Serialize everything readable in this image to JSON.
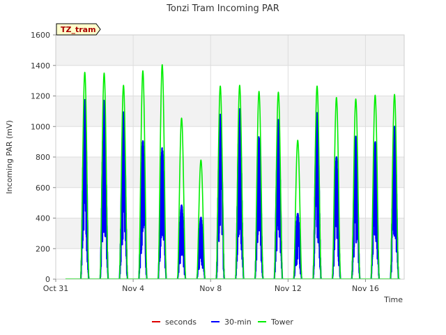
{
  "chart_data": {
    "type": "line",
    "title": "Tonzi Tram Incoming PAR",
    "xlabel": "Time",
    "ylabel": "Incoming PAR (mV)",
    "ylim": [
      0,
      1600
    ],
    "xlim": [
      "2023-10-31",
      "2023-11-18"
    ],
    "x_ticks": [
      {
        "label": "Oct 31",
        "day": 0
      },
      {
        "label": "Nov 4",
        "day": 4
      },
      {
        "label": "Nov 8",
        "day": 8
      },
      {
        "label": "Nov 12",
        "day": 12
      },
      {
        "label": "Nov 16",
        "day": 16
      }
    ],
    "y_ticks": [
      0,
      200,
      400,
      600,
      800,
      1000,
      1200,
      1400,
      1600
    ],
    "grid": true,
    "banded_background": true,
    "site_label": "TZ_tram",
    "legend_position": "bottom-center",
    "series": [
      {
        "name": "seconds",
        "color": "#dd0000",
        "daily_peaks": []
      },
      {
        "name": "30-min",
        "color": "#0000ff",
        "daily_peaks": [
          {
            "date": "Nov 1",
            "peak": 1175
          },
          {
            "date": "Nov 2",
            "peak": 1175
          },
          {
            "date": "Nov 3",
            "peak": 1095
          },
          {
            "date": "Nov 4",
            "peak": 905
          },
          {
            "date": "Nov 5",
            "peak": 860
          },
          {
            "date": "Nov 6",
            "peak": 485
          },
          {
            "date": "Nov 7",
            "peak": 405
          },
          {
            "date": "Nov 8",
            "peak": 1080
          },
          {
            "date": "Nov 9",
            "peak": 1115
          },
          {
            "date": "Nov 10",
            "peak": 935
          },
          {
            "date": "Nov 11",
            "peak": 1045
          },
          {
            "date": "Nov 12",
            "peak": 430
          },
          {
            "date": "Nov 13",
            "peak": 1090
          },
          {
            "date": "Nov 14",
            "peak": 800
          },
          {
            "date": "Nov 15",
            "peak": 935
          },
          {
            "date": "Nov 16",
            "peak": 900
          },
          {
            "date": "Nov 17",
            "peak": 1000
          }
        ]
      },
      {
        "name": "Tower",
        "color": "#00ee00",
        "daily_peaks": [
          {
            "date": "Nov 1",
            "peak": 1355
          },
          {
            "date": "Nov 2",
            "peak": 1350
          },
          {
            "date": "Nov 3",
            "peak": 1270
          },
          {
            "date": "Nov 4",
            "peak": 1365
          },
          {
            "date": "Nov 5",
            "peak": 1405
          },
          {
            "date": "Nov 6",
            "peak": 1055
          },
          {
            "date": "Nov 7",
            "peak": 780
          },
          {
            "date": "Nov 8",
            "peak": 1265
          },
          {
            "date": "Nov 9",
            "peak": 1270
          },
          {
            "date": "Nov 10",
            "peak": 1230
          },
          {
            "date": "Nov 11",
            "peak": 1225
          },
          {
            "date": "Nov 12",
            "peak": 910
          },
          {
            "date": "Nov 13",
            "peak": 1265
          },
          {
            "date": "Nov 14",
            "peak": 1190
          },
          {
            "date": "Nov 15",
            "peak": 1180
          },
          {
            "date": "Nov 16",
            "peak": 1205
          },
          {
            "date": "Nov 17",
            "peak": 1210
          }
        ]
      }
    ]
  }
}
